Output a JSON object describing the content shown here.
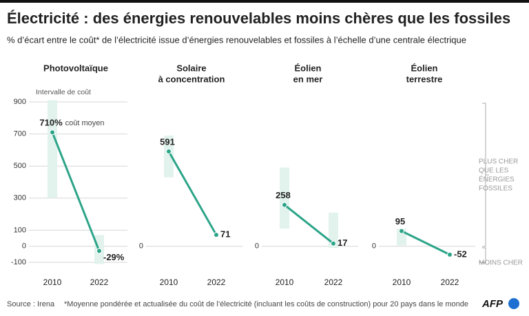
{
  "header": {
    "title": "Électricité : des énergies renouvelables moins chères que les fossiles",
    "subtitle": "% d’écart entre le coût* de l’électricité issue d’énergies renouvelables et fossiles à l’échelle d’une centrale électrique"
  },
  "side_labels": {
    "above": [
      "PLUS CHER",
      "QUE LES",
      "ÉNERGIES",
      "FOSSILES"
    ],
    "below": "MOINS CHER"
  },
  "footer": {
    "source": "Source : Irena",
    "note": "*Moyenne pondérée et actualisée du coût de l’électricité (incluant les coûts de construction) pour 20 pays dans le monde",
    "logo": "AFP"
  },
  "chart_data": [
    {
      "type": "line",
      "title": [
        "Photovoltaïque"
      ],
      "categories": [
        "2010",
        "2022"
      ],
      "values": [
        710,
        -29
      ],
      "value_labels": [
        "710%",
        "-29%"
      ],
      "ranges": [
        [
          300,
          910
        ],
        [
          -110,
          70
        ]
      ],
      "band_label": "Intervalle de coût",
      "point_annotation": "coût moyen",
      "color": "#2ba488",
      "band_color": "#e2f2ec",
      "ylim": [
        -150,
        950
      ],
      "yticks": [
        900,
        700,
        500,
        300,
        100,
        0,
        -100
      ],
      "grid": true
    },
    {
      "type": "line",
      "title": [
        "Solaire",
        "à concentration"
      ],
      "categories": [
        "2010",
        "2022"
      ],
      "values": [
        591,
        71
      ],
      "ranges": [
        [
          430,
          690
        ],
        null
      ],
      "color": "#2ba488",
      "band_color": "#e2f2ec",
      "ylim": [
        -150,
        950
      ],
      "yticks": [
        0
      ],
      "grid": true
    },
    {
      "type": "line",
      "title": [
        "Éolien",
        "en mer"
      ],
      "categories": [
        "2010",
        "2022"
      ],
      "values": [
        258,
        17
      ],
      "ranges": [
        [
          110,
          490
        ],
        [
          -10,
          210
        ]
      ],
      "color": "#2ba488",
      "band_color": "#e2f2ec",
      "ylim": [
        -150,
        950
      ],
      "yticks": [
        0
      ],
      "grid": true
    },
    {
      "type": "line",
      "title": [
        "Éolien",
        "terrestre"
      ],
      "categories": [
        "2010",
        "2022"
      ],
      "values": [
        95,
        -52
      ],
      "ranges": [
        [
          5,
          110
        ],
        null
      ],
      "color": "#2ba488",
      "band_color": "#e2f2ec",
      "ylim": [
        -150,
        950
      ],
      "yticks": [
        0
      ],
      "grid": true
    }
  ]
}
